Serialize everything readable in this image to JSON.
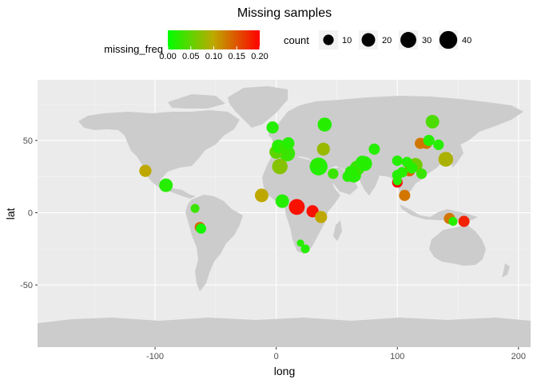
{
  "chart_data": {
    "type": "scatter",
    "title": "Missing samples",
    "xlabel": "long",
    "ylabel": "lat",
    "xlim": [
      -197,
      210
    ],
    "ylim": [
      -93,
      92
    ],
    "x_ticks": [
      -100,
      0,
      100,
      200
    ],
    "y_ticks": [
      -50,
      0,
      50
    ],
    "x_tick_labels": [
      "-100",
      "0",
      "100",
      "200"
    ],
    "y_tick_labels": [
      "-50",
      "0",
      "50"
    ],
    "grid": true,
    "background": "#ebebeb",
    "land_color": "#cccccc",
    "legend_position": "top",
    "color_legend": {
      "title": "missing_freq",
      "range": [
        0,
        0.2
      ],
      "ticks": [
        0,
        0.05,
        0.1,
        0.15,
        0.2
      ],
      "tick_labels": [
        "0.00",
        "0.05",
        "0.10",
        "0.15",
        "0.20"
      ],
      "low_color": "#00ff00",
      "high_color": "#ff0000"
    },
    "size_legend": {
      "title": "count",
      "values": [
        10,
        20,
        30,
        40
      ],
      "labels": [
        "10",
        "20",
        "30",
        "40"
      ]
    },
    "points": [
      {
        "long": -108,
        "lat": 29,
        "count": 15,
        "missing_freq": 0.1
      },
      {
        "long": -91,
        "lat": 19,
        "count": 20,
        "missing_freq": 0.02
      },
      {
        "long": -67,
        "lat": 3,
        "count": 6,
        "missing_freq": 0.03
      },
      {
        "long": -63,
        "lat": -10,
        "count": 10,
        "missing_freq": 0.14
      },
      {
        "long": -62,
        "lat": -11,
        "count": 9,
        "missing_freq": 0.01
      },
      {
        "long": -12,
        "lat": 12,
        "count": 20,
        "missing_freq": 0.1
      },
      {
        "long": -3,
        "lat": 59,
        "count": 15,
        "missing_freq": 0.02
      },
      {
        "long": 0,
        "lat": 42,
        "count": 20,
        "missing_freq": 0.05
      },
      {
        "long": 2,
        "lat": 46,
        "count": 20,
        "missing_freq": 0.02
      },
      {
        "long": 3,
        "lat": 32,
        "count": 28,
        "missing_freq": 0.07
      },
      {
        "long": 5,
        "lat": 8,
        "count": 20,
        "missing_freq": 0.02
      },
      {
        "long": 8,
        "lat": 45,
        "count": 20,
        "missing_freq": 0.03
      },
      {
        "long": 9,
        "lat": 41,
        "count": 30,
        "missing_freq": 0.03
      },
      {
        "long": 10,
        "lat": 48,
        "count": 15,
        "missing_freq": 0.02
      },
      {
        "long": 17,
        "lat": 4,
        "count": 30,
        "missing_freq": 0.19
      },
      {
        "long": 20,
        "lat": -21,
        "count": 3,
        "missing_freq": 0.02
      },
      {
        "long": 24,
        "lat": -25,
        "count": 6,
        "missing_freq": 0.02
      },
      {
        "long": 30,
        "lat": 1,
        "count": 15,
        "missing_freq": 0.19
      },
      {
        "long": 35,
        "lat": 32,
        "count": 40,
        "missing_freq": 0.02
      },
      {
        "long": 37,
        "lat": -3,
        "count": 15,
        "missing_freq": 0.1
      },
      {
        "long": 39,
        "lat": 44,
        "count": 18,
        "missing_freq": 0.08
      },
      {
        "long": 40,
        "lat": 61,
        "count": 22,
        "missing_freq": 0.02
      },
      {
        "long": 47,
        "lat": 27,
        "count": 10,
        "missing_freq": 0.03
      },
      {
        "long": 59,
        "lat": 25,
        "count": 10,
        "missing_freq": 0.02
      },
      {
        "long": 62,
        "lat": 28,
        "count": 18,
        "missing_freq": 0.02
      },
      {
        "long": 64,
        "lat": 26,
        "count": 25,
        "missing_freq": 0.02
      },
      {
        "long": 67,
        "lat": 31,
        "count": 25,
        "missing_freq": 0.03
      },
      {
        "long": 71,
        "lat": 35,
        "count": 18,
        "missing_freq": 0.02
      },
      {
        "long": 73,
        "lat": 34,
        "count": 25,
        "missing_freq": 0.02
      },
      {
        "long": 81,
        "lat": 44,
        "count": 12,
        "missing_freq": 0.02
      },
      {
        "long": 100,
        "lat": 36,
        "count": 10,
        "missing_freq": 0.02
      },
      {
        "long": 100,
        "lat": 26,
        "count": 10,
        "missing_freq": 0.02
      },
      {
        "long": 100,
        "lat": 21,
        "count": 10,
        "missing_freq": 0.2
      },
      {
        "long": 100,
        "lat": 22,
        "count": 6,
        "missing_freq": 0.02
      },
      {
        "long": 104,
        "lat": 28,
        "count": 10,
        "missing_freq": 0.02
      },
      {
        "long": 106,
        "lat": 12,
        "count": 12,
        "missing_freq": 0.13
      },
      {
        "long": 108,
        "lat": 35,
        "count": 10,
        "missing_freq": 0.02
      },
      {
        "long": 110,
        "lat": 29,
        "count": 12,
        "missing_freq": 0.14
      },
      {
        "long": 112,
        "lat": 31,
        "count": 12,
        "missing_freq": 0.02
      },
      {
        "long": 115,
        "lat": 33,
        "count": 22,
        "missing_freq": 0.06
      },
      {
        "long": 119,
        "lat": 48,
        "count": 12,
        "missing_freq": 0.13
      },
      {
        "long": 120,
        "lat": 27,
        "count": 10,
        "missing_freq": 0.03
      },
      {
        "long": 124,
        "lat": 48,
        "count": 12,
        "missing_freq": 0.13
      },
      {
        "long": 126,
        "lat": 50,
        "count": 12,
        "missing_freq": 0.02
      },
      {
        "long": 129,
        "lat": 63,
        "count": 20,
        "missing_freq": 0.04
      },
      {
        "long": 134,
        "lat": 47,
        "count": 10,
        "missing_freq": 0.02
      },
      {
        "long": 140,
        "lat": 37,
        "count": 25,
        "missing_freq": 0.09
      },
      {
        "long": 143,
        "lat": -4,
        "count": 12,
        "missing_freq": 0.13
      },
      {
        "long": 146,
        "lat": -6,
        "count": 6,
        "missing_freq": 0.02
      },
      {
        "long": 155,
        "lat": -6,
        "count": 12,
        "missing_freq": 0.18
      }
    ]
  }
}
